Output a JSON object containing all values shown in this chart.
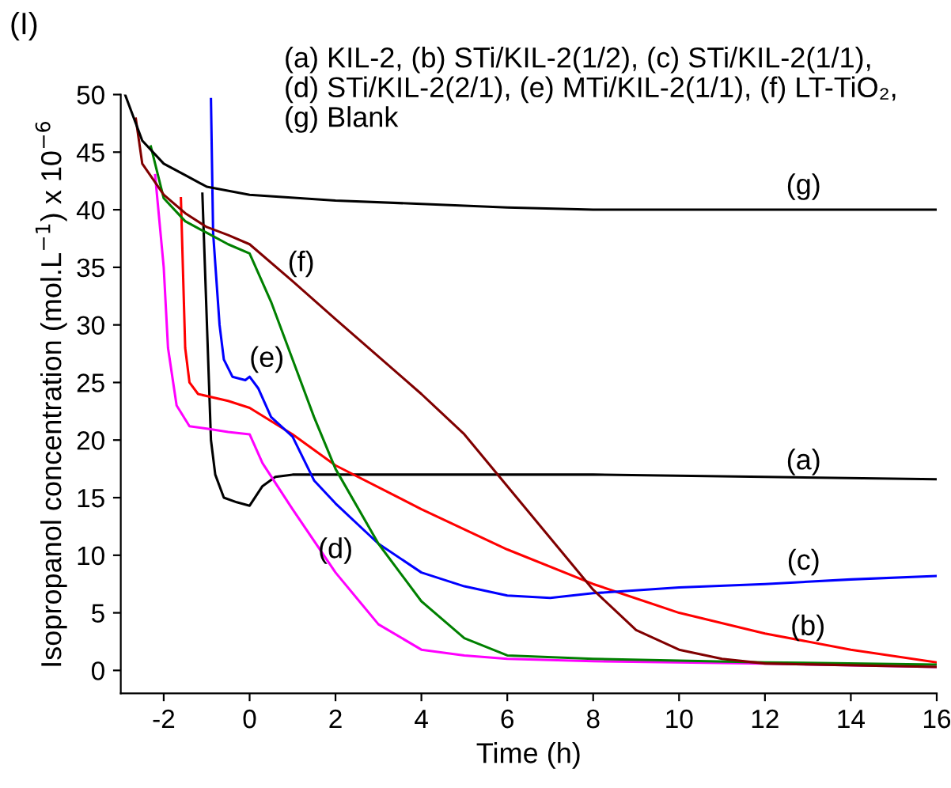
{
  "chart_data": {
    "type": "line",
    "xlabel": "Time (h)",
    "ylabel": "Isopropanol concentration (mol.L$^{−1}$) x 10$^{−6}$",
    "xlim": [
      -3,
      16
    ],
    "xticks": [
      -2,
      0,
      2,
      4,
      6,
      8,
      10,
      12,
      14,
      16
    ],
    "ylim": [
      -2,
      50
    ],
    "yticks": [
      0,
      5,
      10,
      15,
      20,
      25,
      30,
      35,
      40,
      45,
      50
    ],
    "grid": false,
    "legend": false,
    "marker": "none",
    "line_style": "solid",
    "annotations": [
      "(I)",
      "(a) KIL-2, (b) STi/KIL-2(1/2), (c) STi/KIL-2(1/1),\n(d) STi/KIL-2(2/1), (e) MTi/KIL-2(1/1), (f) LT-TiO₂,\n(g) Blank"
    ],
    "series": [
      {
        "name": "(a)",
        "color": "#000000",
        "x": [
          -1.1,
          -0.9,
          -0.8,
          -0.6,
          -0.3,
          0,
          0.3,
          0.6,
          1,
          4,
          8,
          12,
          16
        ],
        "values": [
          41.4,
          20,
          17,
          15,
          14.6,
          14.3,
          16,
          16.8,
          17,
          17,
          17,
          16.8,
          16.6
        ]
      },
      {
        "name": "(b)",
        "color": "#ff0000",
        "x": [
          -1.6,
          -1.5,
          -1.4,
          -1.2,
          -0.5,
          0,
          1,
          2,
          4,
          6,
          8,
          10,
          12,
          14,
          16
        ],
        "values": [
          41,
          28,
          25,
          24,
          23.4,
          22.8,
          20.5,
          17.8,
          14,
          10.5,
          7.5,
          5,
          3.2,
          1.8,
          0.7
        ]
      },
      {
        "name": "(c)",
        "color": "#0000ff",
        "x": [
          -0.9,
          -0.85,
          -0.7,
          -0.6,
          -0.4,
          -0.1,
          0,
          0.2,
          0.5,
          1,
          1.5,
          2,
          3,
          4,
          5,
          6,
          7,
          8,
          10,
          12,
          14,
          16
        ],
        "values": [
          49.6,
          38,
          30,
          27,
          25.5,
          25.2,
          25.5,
          24.5,
          22,
          20.3,
          16.5,
          14.5,
          11,
          8.5,
          7.3,
          6.5,
          6.3,
          6.7,
          7.2,
          7.5,
          7.9,
          8.2
        ]
      },
      {
        "name": "(d)",
        "color": "#ff00ff",
        "x": [
          -2.2,
          -2,
          -1.9,
          -1.7,
          -1.4,
          -1,
          -0.5,
          0,
          0.3,
          1,
          2,
          3,
          4,
          5,
          6,
          8,
          12,
          16
        ],
        "values": [
          43,
          35,
          28,
          23,
          21.2,
          21,
          20.7,
          20.5,
          18,
          14,
          8.5,
          4,
          1.8,
          1.3,
          1,
          0.8,
          0.6,
          0.3
        ]
      },
      {
        "name": "(e)",
        "color": "#008000",
        "x": [
          -2.3,
          -2,
          -1.5,
          -1,
          -0.5,
          0,
          0.5,
          1,
          1.5,
          2,
          3,
          4,
          5,
          6,
          8,
          12,
          16
        ],
        "values": [
          45.5,
          41,
          39,
          38,
          37,
          36.2,
          32,
          27,
          22,
          17.5,
          11,
          6,
          2.8,
          1.3,
          1,
          0.7,
          0.5
        ]
      },
      {
        "name": "(f)",
        "color": "#800000",
        "x": [
          -2.65,
          -2.5,
          -2,
          -1.5,
          -1,
          -0.5,
          0,
          1,
          2,
          4,
          5,
          6,
          7,
          8,
          9,
          10,
          11,
          12,
          16
        ],
        "values": [
          47.9,
          44,
          41.3,
          39.7,
          38.5,
          37.8,
          37,
          33.8,
          30.5,
          24,
          20.5,
          16,
          11.5,
          7,
          3.5,
          1.8,
          1,
          0.6,
          0.3
        ]
      },
      {
        "name": "(g)",
        "color": "#000000",
        "x": [
          -2.9,
          -2.5,
          -2,
          -1.5,
          -1,
          0,
          2,
          4,
          6,
          8,
          10,
          12,
          16
        ],
        "values": [
          50,
          46,
          44,
          43,
          42,
          41.3,
          40.8,
          40.5,
          40.2,
          40,
          40,
          40,
          40
        ]
      }
    ]
  }
}
